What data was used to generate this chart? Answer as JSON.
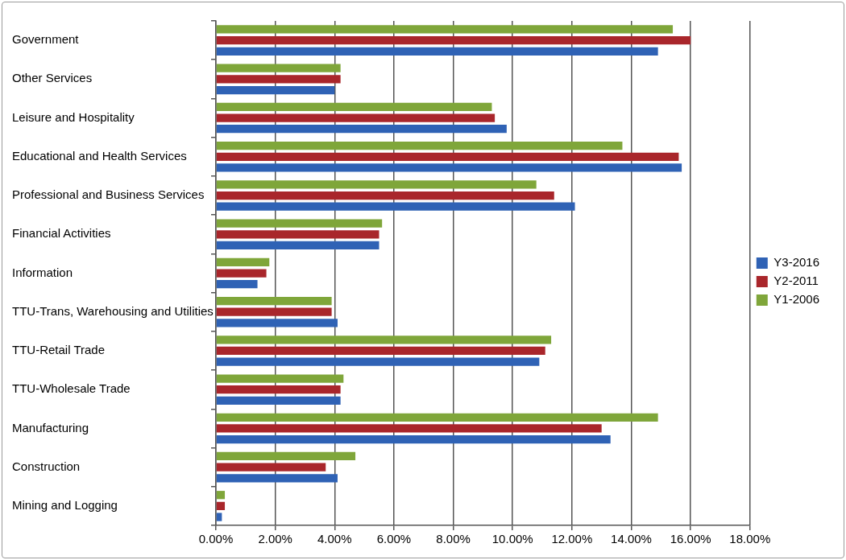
{
  "chart_data": {
    "type": "bar",
    "orientation": "horizontal",
    "categories": [
      "Government",
      "Other Services",
      "Leisure and Hospitality",
      "Educational and Health Services",
      "Professional and Business Services",
      "Financial Activities",
      "Information",
      "TTU-Trans, Warehousing and Utilities",
      "TTU-Retail Trade",
      "TTU-Wholesale Trade",
      "Manufacturing",
      "Construction",
      "Mining and Logging"
    ],
    "series": [
      {
        "name": "Y1-2006",
        "color": "#7fa63a",
        "values": [
          15.4,
          4.2,
          9.3,
          13.7,
          10.8,
          5.6,
          1.8,
          3.9,
          11.3,
          4.3,
          14.9,
          4.7,
          0.3
        ]
      },
      {
        "name": "Y2-2011",
        "color": "#a9262b",
        "values": [
          16.0,
          4.2,
          9.4,
          15.6,
          11.4,
          5.5,
          1.7,
          3.9,
          11.1,
          4.2,
          13.0,
          3.7,
          0.3
        ]
      },
      {
        "name": "Y3-2016",
        "color": "#2f62b5",
        "values": [
          14.9,
          4.0,
          9.8,
          15.7,
          12.1,
          5.5,
          1.4,
          4.1,
          10.9,
          4.2,
          13.3,
          4.1,
          0.2
        ]
      }
    ],
    "xlim": [
      0,
      18
    ],
    "xticks": [
      {
        "value": 0,
        "label": "0.00%"
      },
      {
        "value": 2,
        "label": "2.00%"
      },
      {
        "value": 4,
        "label": "4.00%"
      },
      {
        "value": 6,
        "label": "6.00%"
      },
      {
        "value": 8,
        "label": "8.00%"
      },
      {
        "value": 10,
        "label": "10.00%"
      },
      {
        "value": 12,
        "label": "12.00%"
      },
      {
        "value": 14,
        "label": "14.00%"
      },
      {
        "value": 16,
        "label": "16.00%"
      },
      {
        "value": 18,
        "label": "18.00%"
      }
    ],
    "grid": "x",
    "legend": "right"
  }
}
